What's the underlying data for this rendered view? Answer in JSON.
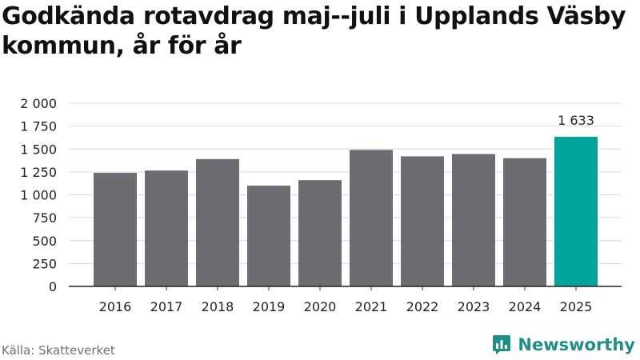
{
  "header": {
    "title": "Godkända rotavdrag maj--juli i Upplands Väsby kommun, år för år"
  },
  "footer": {
    "source": "Källa: Skatteverket",
    "brand": "Newsworthy"
  },
  "colors": {
    "bar": "#6d6c72",
    "highlight": "#00a49a",
    "grid": "#d9d9d9",
    "axis": "#222222",
    "brand": "#1f8e86"
  },
  "chart_data": {
    "type": "bar",
    "categories": [
      "2016",
      "2017",
      "2018",
      "2019",
      "2020",
      "2021",
      "2022",
      "2023",
      "2024",
      "2025"
    ],
    "values": [
      1240,
      1265,
      1390,
      1100,
      1160,
      1490,
      1420,
      1445,
      1400,
      1633
    ],
    "highlight_index": 9,
    "data_labels": [
      {
        "index": 9,
        "text": "1 633"
      }
    ],
    "yticks": [
      0,
      250,
      500,
      750,
      1000,
      1250,
      1500,
      1750,
      2000
    ],
    "ytick_labels": [
      "0",
      "250",
      "500",
      "750",
      "1 000",
      "1 250",
      "1 500",
      "1 750",
      "2 000"
    ],
    "ylim": [
      0,
      2000
    ],
    "grid": true,
    "title": "Godkända rotavdrag maj--juli i Upplands Väsby kommun, år för år",
    "xlabel": "",
    "ylabel": ""
  }
}
